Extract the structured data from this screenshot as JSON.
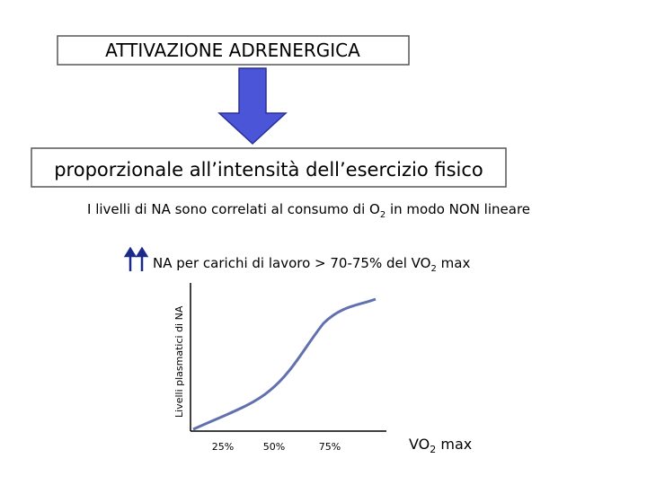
{
  "header": {
    "title": "ATTIVAZIONE ADRENERGICA"
  },
  "box": {
    "text": "proporzionale all’intensità dell’esercizio fisico"
  },
  "note": {
    "before": "I livelli di NA sono correlati al consumo di O",
    "sub": "2",
    "after": " in modo NON lineare"
  },
  "highlight": {
    "before": "NA per carichi di lavoro > 70-75% del VO",
    "sub": "2",
    "after": " max"
  },
  "graph": {
    "y_label": "Livelli plasmatici di NA",
    "x_labels": [
      "25%",
      "50%",
      "75%"
    ],
    "x_title": {
      "before": "VO",
      "sub": "2",
      "after": " max"
    }
  }
}
